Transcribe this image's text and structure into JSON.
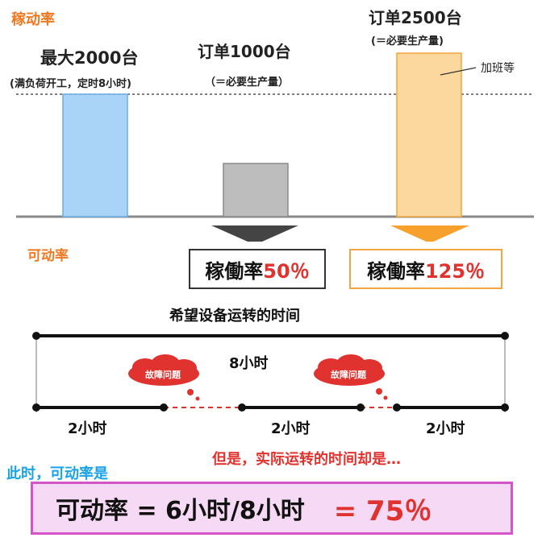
{
  "top": {
    "kadouritsu_label": "稼动率",
    "bar1": {
      "title": "最大2000台",
      "subtitle": "(满负荷开工，定时8小时)",
      "color": "#a9d3f7",
      "border": "#6aaee8"
    },
    "bar2": {
      "title": "订单1000台",
      "subtitle": "（＝必要生产量）",
      "color": "#bdbdbd",
      "border": "#8a8a8a"
    },
    "bar3": {
      "title": "订单2500台",
      "subtitle": "(＝必要生产量)",
      "annotation": "加班等",
      "color": "#fbd89e",
      "border": "#f2a640"
    },
    "rate_low": {
      "label": "稼働率",
      "value": "50％",
      "border": "#333333"
    },
    "rate_high": {
      "label": "稼働率",
      "value": "125％",
      "border": "#f2a640"
    }
  },
  "bottom": {
    "kadouritsu_label": "可动率",
    "title": "希望设备运转的时间",
    "total_hours": "8小时",
    "fault1": "故障问题",
    "fault2": "故障问题",
    "seg1": "2小时",
    "seg2": "2小时",
    "seg3": "2小时",
    "note_blue": "此时，可动率是",
    "note_red": "但是，实际运转的时间却是…",
    "formula_left": "可动率 = 6小时/8小时",
    "formula_right": "= 75％"
  }
}
